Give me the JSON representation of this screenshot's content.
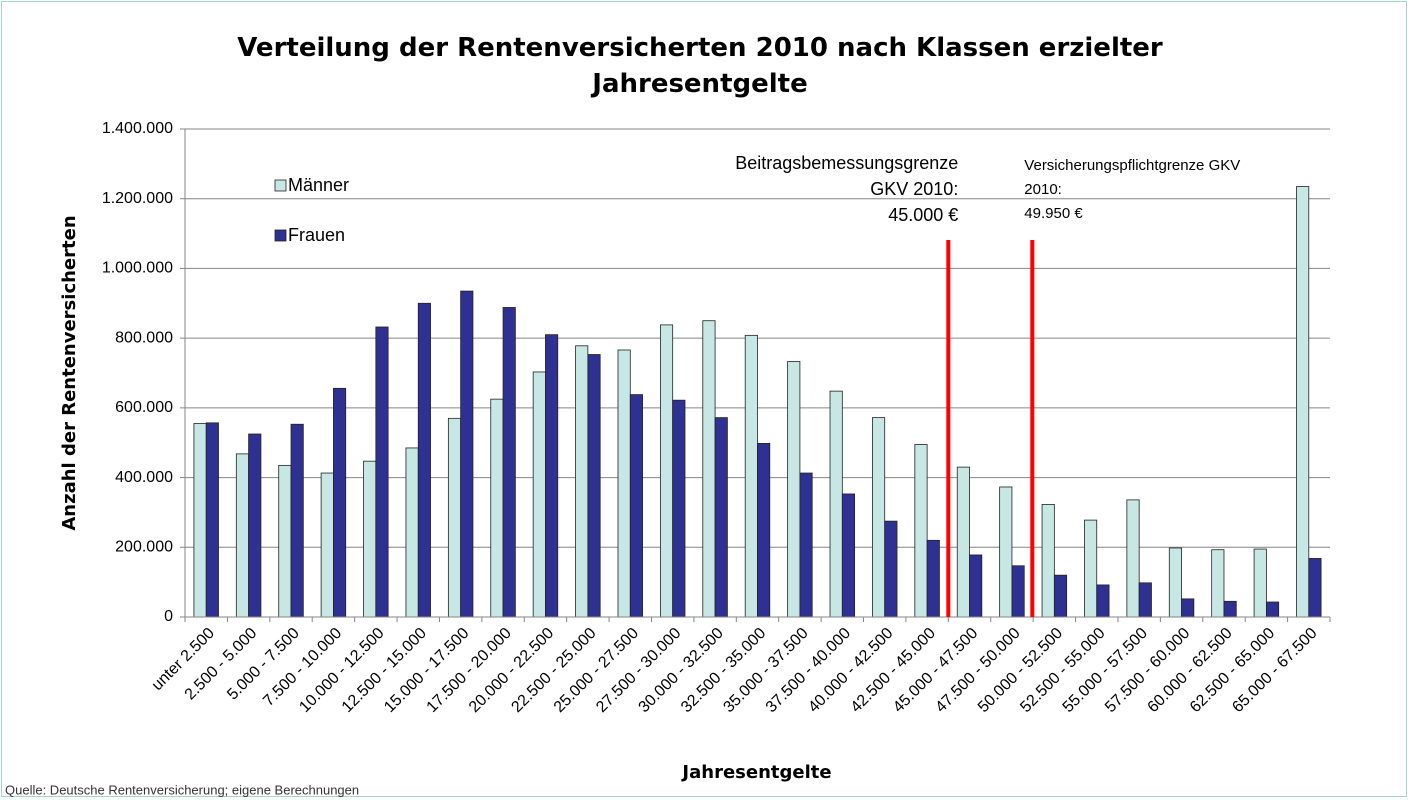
{
  "chart_data": {
    "type": "bar",
    "title": "Verteilung der Rentenversicherten 2010 nach Klassen erzielter Jahresentgelte",
    "x_label": "Jahresentgelte",
    "y_label": "Anzahl der Rentenversicherten",
    "source": "Quelle: Deutsche Rentenversicherung; eigene Berechnungen",
    "categories": [
      "unter 2.500",
      "2.500 - 5.000",
      "5.000 - 7.500",
      "7.500 - 10.000",
      "10.000 - 12.500",
      "12.500 - 15.000",
      "15.000 - 17.500",
      "17.500 - 20.000",
      "20.000 - 22.500",
      "22.500 - 25.000",
      "25.000 - 27.500",
      "27.500 - 30.000",
      "30.000 - 32.500",
      "32.500 - 35.000",
      "35.000 - 37.500",
      "37.500 - 40.000",
      "40.000 - 42.500",
      "42.500 - 45.000",
      "45.000 - 47.500",
      "47.500 - 50.000",
      "50.000 - 52.500",
      "52.500 - 55.000",
      "55.000 - 57.500",
      "57.500 - 60.000",
      "60.000 - 62.500",
      "62.500 - 65.000",
      "65.000 - 67.500"
    ],
    "series": [
      {
        "name": "Männer",
        "color": "#c6e7e4",
        "values": [
          555000,
          468000,
          435000,
          413000,
          447000,
          485000,
          570000,
          625000,
          703000,
          778000,
          766000,
          838000,
          850000,
          808000,
          733000,
          648000,
          572000,
          495000,
          430000,
          373000,
          323000,
          278000,
          336000,
          198000,
          193000,
          195000,
          1235000
        ]
      },
      {
        "name": "Frauen",
        "color": "#2f3192",
        "values": [
          557000,
          525000,
          553000,
          656000,
          832000,
          900000,
          935000,
          888000,
          810000,
          753000,
          638000,
          622000,
          572000,
          498000,
          413000,
          353000,
          275000,
          220000,
          178000,
          147000,
          120000,
          92000,
          98000,
          52000,
          45000,
          43000,
          168000
        ]
      }
    ],
    "xlim": [
      0,
      67500
    ],
    "ylim": [
      0,
      1400000
    ],
    "yticks": [
      0,
      {
        "value": 200000,
        "label": "200.000"
      },
      {
        "value": 400000,
        "label": "400.000"
      },
      {
        "value": 600000,
        "label": "600.000"
      },
      {
        "value": 800000,
        "label": "800.000"
      },
      {
        "value": 1000000,
        "label": "1.000.000"
      },
      {
        "value": 1200000,
        "label": "1.200.000"
      },
      {
        "value": 1400000,
        "label": "1.400.000"
      }
    ],
    "grid": true,
    "reference_lines": [
      {
        "value": 45000,
        "color": "#ff0000",
        "label_lines": [
          "Beitragsbemessungsgrenze",
          "GKV 2010:",
          "45.000 €"
        ],
        "align": "right"
      },
      {
        "value": 49950,
        "color": "#ff0000",
        "label_lines": [
          "Versicherungspflichtgrenze GKV",
          "2010:",
          "49.950 €"
        ],
        "align": "left"
      }
    ]
  }
}
